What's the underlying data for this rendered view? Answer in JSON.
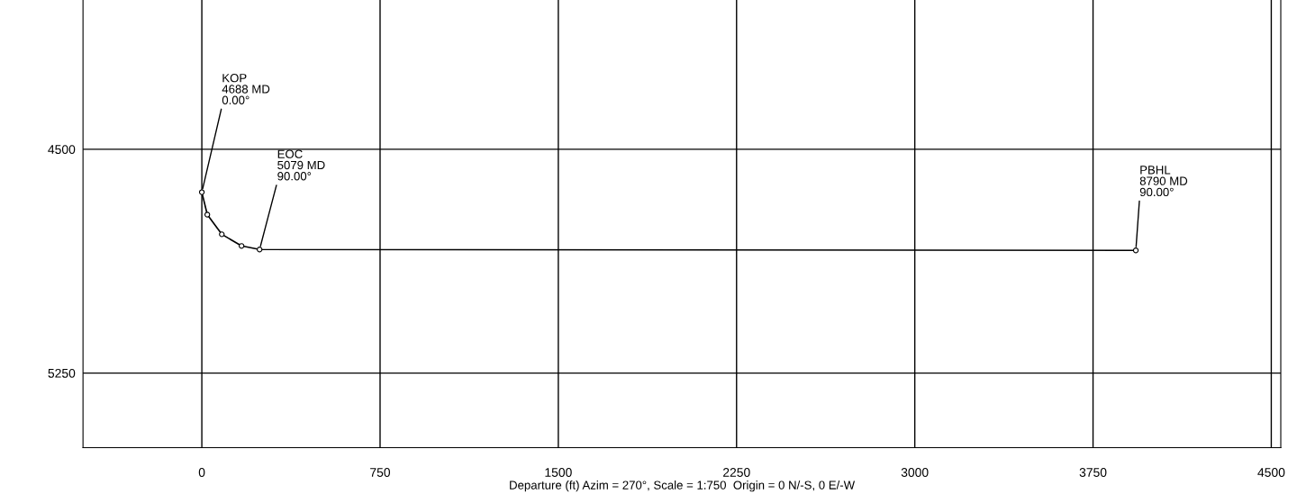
{
  "chart_data": {
    "type": "line",
    "xlabel": "Departure (ft) Azim = 270°, Scale = 1:750  Origin = 0 N/-S, 0 E/-W",
    "x": [
      0,
      23,
      84,
      167,
      243,
      3930
    ],
    "series": [
      {
        "color": "#000000",
        "values": [
          4644,
          4719,
          4785,
          4824,
          4836,
          4839
        ]
      }
    ],
    "xlim": [
      -500,
      4540
    ],
    "ylim": [
      5500,
      4000
    ],
    "xticks": [
      0,
      750,
      1500,
      2250,
      3000,
      3750,
      4500
    ],
    "yticks": [
      4500,
      5250
    ],
    "grid": true,
    "marker": "circle",
    "line_style": "solid",
    "annotations": [
      {
        "text": "KOP\n4688 MD\n0.00°",
        "x": 0,
        "y": 4644
      },
      {
        "text": "EOC\n5079 MD\n90.00°",
        "x": 243,
        "y": 4836
      },
      {
        "text": "PBHL\n8790 MD\n90.00°",
        "x": 3930,
        "y": 4839
      }
    ]
  }
}
